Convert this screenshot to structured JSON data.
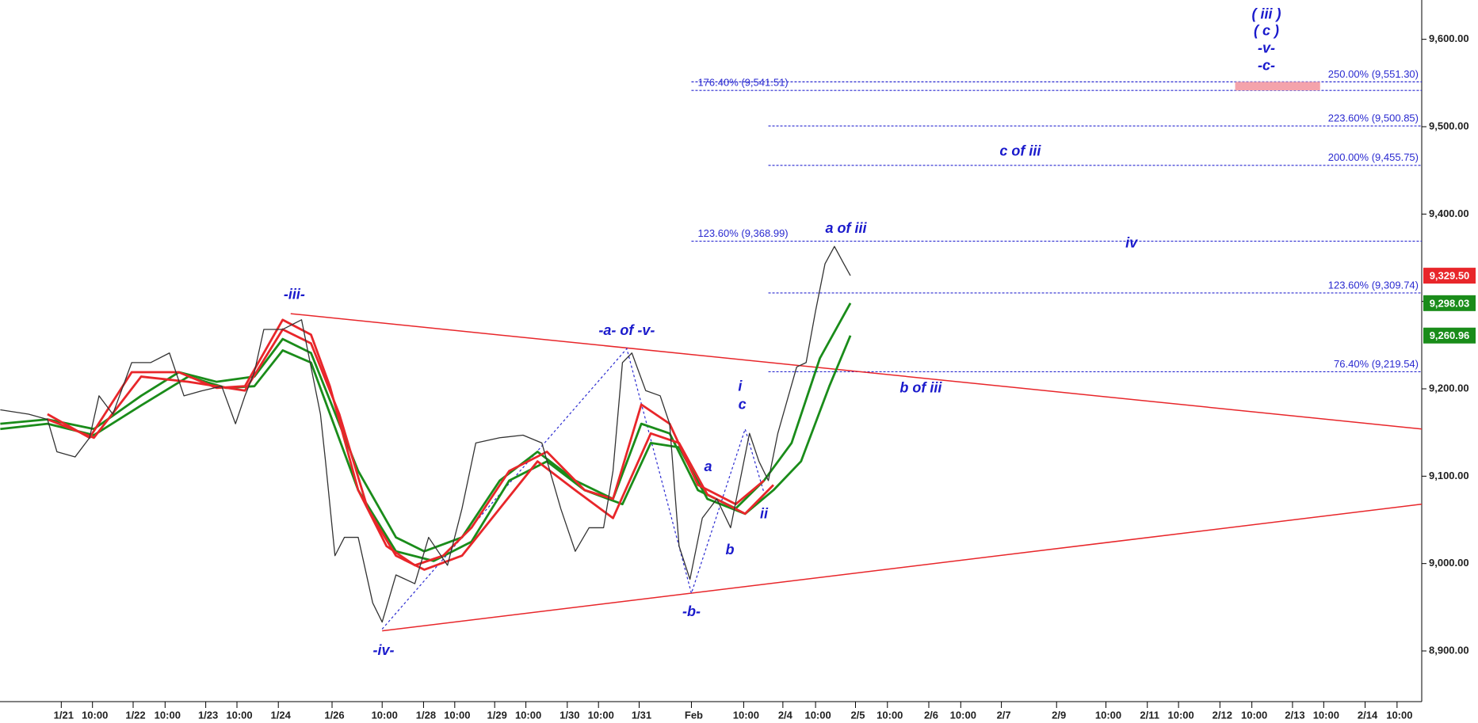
{
  "chart_data": {
    "type": "line",
    "xlim": [
      -0.844,
      18.74
    ],
    "ylim": [
      8842,
      9645
    ],
    "xticks": [
      {
        "value": 0,
        "label": "1/21"
      },
      {
        "value": 0.43,
        "label": "10:00"
      },
      {
        "value": 0.99,
        "label": "1/22"
      },
      {
        "value": 1.43,
        "label": "10:00"
      },
      {
        "value": 1.99,
        "label": "1/23"
      },
      {
        "value": 2.42,
        "label": "10:00"
      },
      {
        "value": 2.99,
        "label": "1/24"
      },
      {
        "value": 3.73,
        "label": "1/26"
      },
      {
        "value": 4.42,
        "label": "10:00"
      },
      {
        "value": 4.99,
        "label": "1/28"
      },
      {
        "value": 5.42,
        "label": "10:00"
      },
      {
        "value": 5.97,
        "label": "1/29"
      },
      {
        "value": 6.4,
        "label": "10:00"
      },
      {
        "value": 6.97,
        "label": "1/30"
      },
      {
        "value": 7.4,
        "label": "10:00"
      },
      {
        "value": 7.96,
        "label": "1/31"
      },
      {
        "value": 8.68,
        "label": "Feb"
      },
      {
        "value": 9.4,
        "label": "10:00"
      },
      {
        "value": 9.94,
        "label": "2/4"
      },
      {
        "value": 10.39,
        "label": "10:00"
      },
      {
        "value": 10.94,
        "label": "2/5"
      },
      {
        "value": 11.38,
        "label": "10:00"
      },
      {
        "value": 11.95,
        "label": "2/6"
      },
      {
        "value": 12.39,
        "label": "10:00"
      },
      {
        "value": 12.95,
        "label": "2/7"
      },
      {
        "value": 13.71,
        "label": "2/9"
      },
      {
        "value": 14.39,
        "label": "10:00"
      },
      {
        "value": 14.96,
        "label": "2/11"
      },
      {
        "value": 15.39,
        "label": "10:00"
      },
      {
        "value": 15.96,
        "label": "2/12"
      },
      {
        "value": 16.4,
        "label": "10:00"
      },
      {
        "value": 16.96,
        "label": "2/13"
      },
      {
        "value": 17.39,
        "label": "10:00"
      },
      {
        "value": 17.96,
        "label": "2/14"
      },
      {
        "value": 18.4,
        "label": "10:00"
      }
    ],
    "yticks": [
      {
        "value": 8900,
        "label": "8,900.00"
      },
      {
        "value": 9000,
        "label": "9,000.00"
      },
      {
        "value": 9100,
        "label": "9,100.00"
      },
      {
        "value": 9200,
        "label": "9,200.00"
      },
      {
        "value": 9300,
        "label": "9,300.00"
      },
      {
        "value": 9400,
        "label": "9,400.00"
      },
      {
        "value": 9500,
        "label": "9,500.00"
      },
      {
        "value": 9600,
        "label": "9,600.00"
      }
    ],
    "series": [
      {
        "color": "#333333",
        "x": [
          -0.84,
          -0.45,
          -0.19,
          -0.06,
          0.19,
          0.39,
          0.52,
          0.71,
          0.97,
          1.23,
          1.49,
          1.69,
          1.95,
          2.21,
          2.4,
          2.53,
          2.66,
          2.79,
          3.05,
          3.31,
          3.44,
          3.57,
          3.64,
          3.77,
          3.9,
          4.09,
          4.29,
          4.42,
          4.61,
          4.87,
          5.06,
          5.32,
          5.52,
          5.71,
          6.04,
          6.36,
          6.62,
          6.88,
          7.08,
          7.27,
          7.47,
          7.6,
          7.73,
          7.86,
          8.05,
          8.25,
          8.38,
          8.51,
          8.66,
          8.83,
          9.03,
          9.22,
          9.35,
          9.48,
          9.61,
          9.74,
          9.87,
          10.0,
          10.13,
          10.26,
          10.39,
          10.52,
          10.65,
          10.78,
          10.87
        ],
        "values": [
          9176,
          9171,
          9165,
          9128,
          9122,
          9144,
          9192,
          9171,
          9230,
          9230,
          9241,
          9192,
          9198,
          9203,
          9160,
          9192,
          9219,
          9268,
          9268,
          9279,
          9225,
          9171,
          9117,
          9009,
          9030,
          9030,
          8955,
          8933,
          8987,
          8977,
          9030,
          8998,
          9063,
          9138,
          9144,
          9147,
          9138,
          9063,
          9014,
          9041,
          9041,
          9106,
          9230,
          9241,
          9198,
          9192,
          9160,
          9020,
          8982,
          9052,
          9074,
          9041,
          9095,
          9149,
          9117,
          9095,
          9149,
          9187,
          9225,
          9230,
          9289,
          9343,
          9363,
          9343,
          9329.5
        ]
      },
      {
        "color": "#e8262a",
        "x": [
          -0.19,
          0.39,
          0.97,
          1.62,
          2.14,
          2.53,
          3.05,
          3.44,
          3.7,
          4.09,
          4.48,
          4.87,
          5.26,
          5.65,
          6.17,
          6.69,
          7.21,
          7.6,
          7.99,
          8.38,
          8.77,
          9.29,
          9.68
        ],
        "values": [
          9171,
          9144,
          9219,
          9219,
          9201,
          9203,
          9279,
          9262,
          9203,
          9084,
          9020,
          8998,
          9009,
          9041,
          9106,
          9128,
          9084,
          9074,
          9182,
          9160,
          9090,
          9068,
          9095
        ]
      },
      {
        "color": "#e8262a",
        "x": [
          -0.19,
          0.45,
          1.1,
          1.75,
          2.53,
          3.05,
          3.44,
          3.83,
          4.22,
          4.61,
          5.0,
          5.52,
          6.04,
          6.56,
          7.08,
          7.6,
          8.12,
          8.51,
          8.9,
          9.42,
          9.81
        ],
        "values": [
          9165,
          9144,
          9214,
          9208,
          9198,
          9268,
          9252,
          9171,
          9063,
          9009,
          8993,
          9009,
          9063,
          9117,
          9084,
          9052,
          9149,
          9138,
          9079,
          9057,
          9090
        ]
      },
      {
        "color": "#1a8c1a",
        "x": [
          -0.84,
          -0.19,
          0.45,
          1.1,
          1.62,
          2.14,
          2.66,
          3.05,
          3.44,
          4.09,
          4.61,
          5.0,
          5.52,
          6.04,
          6.56,
          7.08,
          7.6,
          7.99,
          8.38,
          8.77,
          9.29,
          9.68,
          10.06,
          10.45,
          10.87
        ],
        "values": [
          9160,
          9165,
          9154,
          9192,
          9219,
          9208,
          9214,
          9257,
          9241,
          9106,
          9030,
          9014,
          9030,
          9095,
          9128,
          9095,
          9074,
          9160,
          9149,
          9084,
          9063,
          9095,
          9138,
          9235,
          9298.03
        ]
      },
      {
        "color": "#1a8c1a",
        "x": [
          -0.84,
          -0.19,
          0.45,
          1.1,
          1.75,
          2.27,
          2.66,
          3.05,
          3.44,
          4.09,
          4.61,
          5.13,
          5.65,
          6.17,
          6.69,
          7.21,
          7.73,
          8.12,
          8.51,
          8.9,
          9.42,
          9.81,
          10.19,
          10.58,
          10.87
        ],
        "values": [
          9154,
          9160,
          9147,
          9181,
          9214,
          9201,
          9203,
          9244,
          9230,
          9084,
          9014,
          9003,
          9025,
          9095,
          9117,
          9084,
          9068,
          9138,
          9133,
          9074,
          9057,
          9084,
          9117,
          9203,
          9260.96
        ]
      }
    ],
    "levels": [
      {
        "label": "250.00% (9,551.30)",
        "value": 9551.3,
        "x_start": 8.68,
        "side": "right"
      },
      {
        "label": "176.40% (9,541.51)",
        "value": 9541.51,
        "x_start": 8.68,
        "side": "left"
      },
      {
        "label": "223.60% (9,500.85)",
        "value": 9500.85,
        "x_start": 9.74,
        "side": "right"
      },
      {
        "label": "200.00% (9,455.75)",
        "value": 9455.75,
        "x_start": 9.74,
        "side": "right"
      },
      {
        "label": "123.60% (9,368.99)",
        "value": 9368.99,
        "x_start": 8.68,
        "side": "left"
      },
      {
        "label": "123.60% (9,309.74)",
        "value": 9309.74,
        "x_start": 9.74,
        "side": "right"
      },
      {
        "label": "76.40% (9,219.54)",
        "value": 9219.54,
        "x_start": 9.74,
        "side": "right"
      }
    ],
    "level_color": "#2a2ad0",
    "trendlines": [
      {
        "color": "#e8262a",
        "x": [
          3.16,
          18.74
        ],
        "values": [
          9286,
          9154
        ]
      },
      {
        "color": "#e8262a",
        "x": [
          4.42,
          18.74
        ],
        "values": [
          8923,
          9068
        ]
      }
    ],
    "wave_path": {
      "color": "#2a2ad0",
      "x": [
        4.42,
        7.79,
        8.68,
        9.42,
        9.68
      ],
      "values": [
        8925,
        9246,
        8966,
        9154,
        9081
      ]
    },
    "target_zone": {
      "color": "#f4a3ab",
      "x": [
        16.17,
        17.34
      ],
      "y": [
        9541.51,
        9551.3
      ]
    },
    "annotation_color": "#1a1acc",
    "annotations": [
      {
        "text": "-iii-",
        "x": 3.21,
        "y": 9307
      },
      {
        "text": "-iv-",
        "x": 4.44,
        "y": 8900
      },
      {
        "text": "-a- of -v-",
        "x": 7.79,
        "y": 9266
      },
      {
        "text": "-b-",
        "x": 8.68,
        "y": 8944
      },
      {
        "text": "a of iii",
        "x": 10.81,
        "y": 9383
      },
      {
        "text": "c of iii",
        "x": 13.21,
        "y": 9471
      },
      {
        "text": "iv",
        "x": 14.74,
        "y": 9366
      },
      {
        "text": "b of iii",
        "x": 11.84,
        "y": 9200
      },
      {
        "text": "i",
        "x": 9.35,
        "y": 9202
      },
      {
        "text": "c",
        "x": 9.38,
        "y": 9181
      },
      {
        "text": "a",
        "x": 8.91,
        "y": 9110
      },
      {
        "text": "b",
        "x": 9.21,
        "y": 9015
      },
      {
        "text": "ii",
        "x": 9.68,
        "y": 9056
      },
      {
        "text": "( iii )",
        "x": 16.6,
        "y": 9628
      },
      {
        "text": "( c )",
        "x": 16.6,
        "y": 9609
      },
      {
        "text": "-v-",
        "x": 16.6,
        "y": 9589
      },
      {
        "text": "-c-",
        "x": 16.6,
        "y": 9569
      }
    ],
    "last_tags": [
      {
        "value": 9329.5,
        "label": "9,329.50",
        "color": "#e8262a"
      },
      {
        "value": 9298.03,
        "label": "9,298.03",
        "color": "#1a8c1a"
      },
      {
        "value": 9260.96,
        "label": "9,260.96",
        "color": "#1a8c1a"
      }
    ]
  }
}
